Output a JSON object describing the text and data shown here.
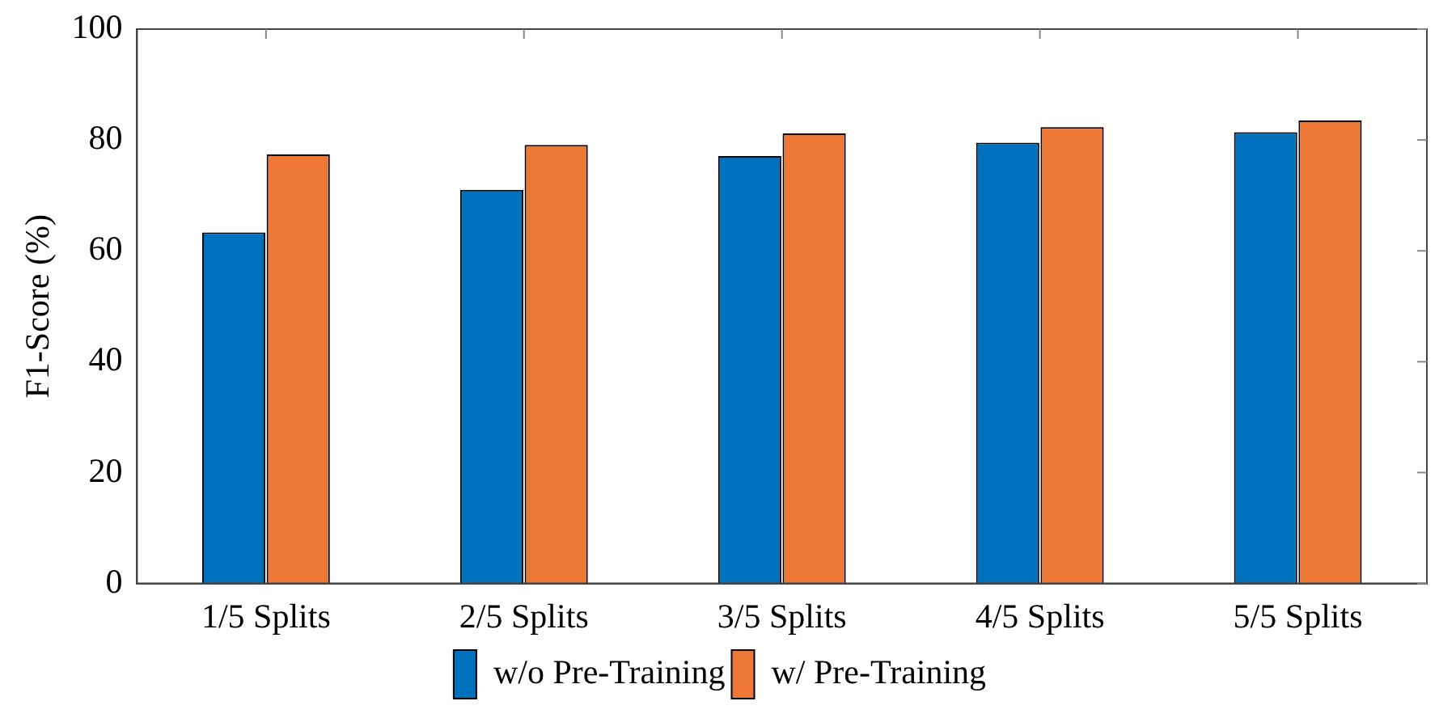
{
  "chart_data": {
    "type": "bar",
    "ylabel": "F1-Score (%)",
    "categories": [
      "1/5 Splits",
      "2/5 Splits",
      "3/5 Splits",
      "4/5 Splits",
      "5/5 Splits"
    ],
    "series": [
      {
        "name": "w/o Pre-Training",
        "color": "#0072bd",
        "values": [
          63.3,
          71.0,
          77.1,
          79.5,
          81.4
        ]
      },
      {
        "name": "w/ Pre-Training",
        "color": "#ed7734",
        "values": [
          77.4,
          79.1,
          81.2,
          82.3,
          83.5
        ]
      }
    ],
    "ylim": [
      0,
      100
    ],
    "yticks": [
      0,
      20,
      40,
      60,
      80,
      100
    ],
    "grid": false,
    "legend": "bottom"
  }
}
